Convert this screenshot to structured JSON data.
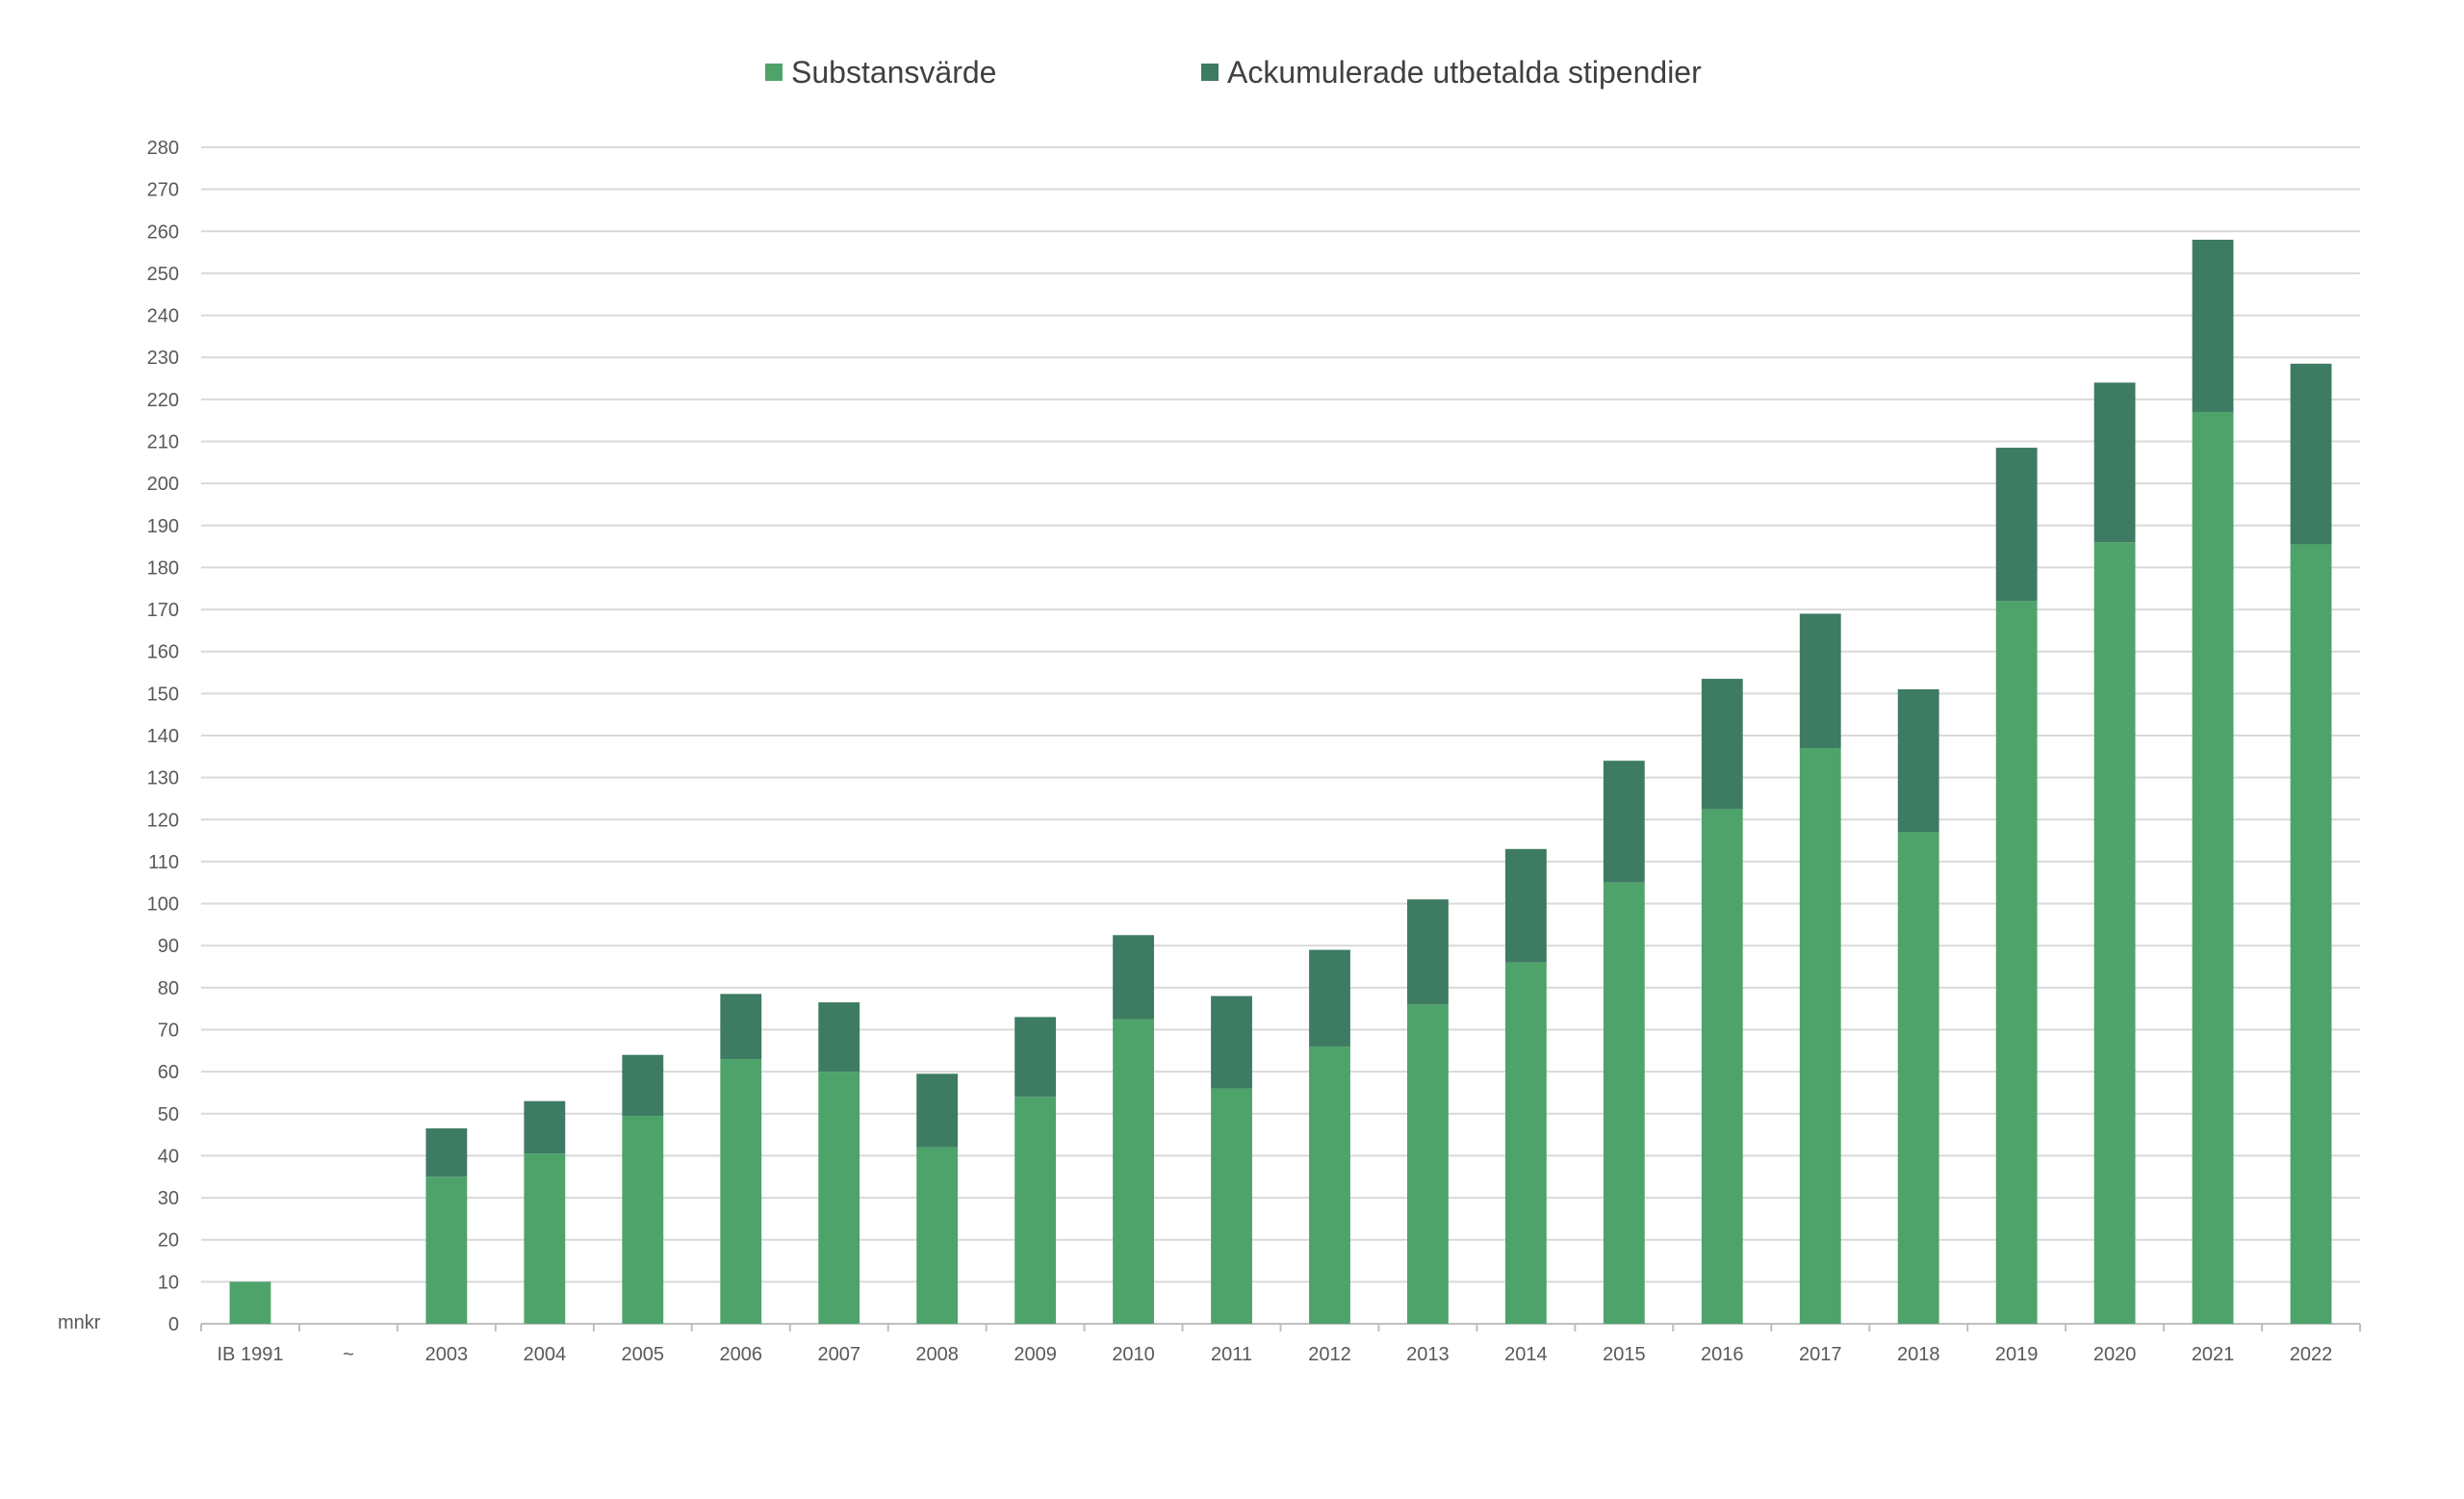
{
  "chart_data": {
    "type": "bar",
    "stacked": true,
    "title": "",
    "xlabel": "",
    "ylabel": "mnkr",
    "ylim": [
      0,
      280
    ],
    "ytick_step": 10,
    "grid": true,
    "legend_position": "top-center",
    "categories": [
      "IB 1991",
      "~",
      "2003",
      "2004",
      "2005",
      "2006",
      "2007",
      "2008",
      "2009",
      "2010",
      "2011",
      "2012",
      "2013",
      "2014",
      "2015",
      "2016",
      "2017",
      "2018",
      "2019",
      "2020",
      "2021",
      "2022"
    ],
    "series": [
      {
        "name": "Substansvärde",
        "color": "#4EA36B",
        "values": [
          10,
          null,
          35,
          40.5,
          49.5,
          63,
          60,
          42,
          54,
          72.5,
          56,
          66,
          76,
          86,
          105,
          122.5,
          137,
          117,
          172,
          186,
          217,
          185.5
        ]
      },
      {
        "name": "Ackumulerade utbetalda stipendier",
        "color": "#3D7B62",
        "values": [
          0,
          null,
          11.5,
          12.5,
          14.5,
          15.5,
          16.5,
          17.5,
          19,
          20,
          22,
          23,
          25,
          27,
          29,
          31,
          32,
          34,
          36.5,
          38,
          41,
          43
        ]
      }
    ]
  }
}
